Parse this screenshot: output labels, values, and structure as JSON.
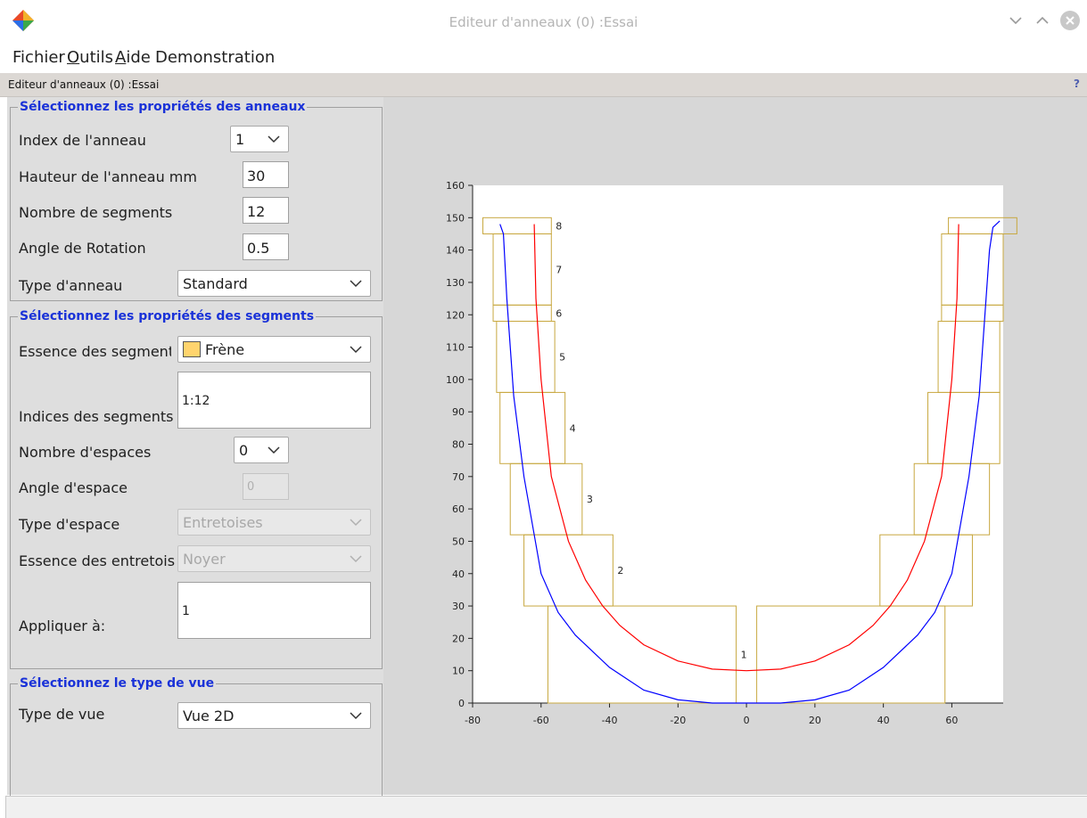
{
  "window": {
    "title": "Editeur d'anneaux (0) :Essai",
    "icons": [
      "app-logo-icon",
      "minimize-icon",
      "maximize-icon",
      "close-icon"
    ]
  },
  "menu": {
    "fichier": "Fichier",
    "outils_u": "O",
    "outils_rest": "utils",
    "aide_u": "A",
    "aide_rest": "ide",
    "demo": "Demonstration"
  },
  "panel": {
    "title": "Editeur d'anneaux (0) :Essai",
    "help": "?"
  },
  "rings": {
    "group_title": "Sélectionnez les propriétés des anneaux",
    "index_label": "Index de l'anneau",
    "index_value": "1",
    "height_label": "Hauteur de l'anneau mm",
    "height_value": "30",
    "segments_label": "Nombre de segments",
    "segments_value": "12",
    "rotation_label": "Angle de Rotation",
    "rotation_value": "0.5",
    "type_label": "Type d'anneau",
    "type_value": "Standard"
  },
  "segments": {
    "group_title": "Sélectionnez les propriétés des segments",
    "essence_label": "Essence des segments",
    "essence_value": "Frène",
    "essence_color": "#ffd46e",
    "indices_label": "Indices des segments",
    "indices_value": "1:12",
    "spaces_label": "Nombre d'espaces",
    "spaces_value": "0",
    "space_angle_label": "Angle d'espace",
    "space_angle_value": "0",
    "space_type_label": "Type d'espace",
    "space_type_value": "Entretoises",
    "spacer_essence_label": "Essence des entretoises",
    "spacer_essence_value": "Noyer",
    "apply_label": "Appliquer à:",
    "apply_value": "1"
  },
  "view": {
    "group_title": "Sélectionnez le type de vue",
    "type_label": "Type de vue",
    "type_value": "Vue 2D"
  },
  "chart_data": {
    "type": "line",
    "xlim": [
      -80,
      75
    ],
    "ylim": [
      0,
      160
    ],
    "x_ticks": [
      -80,
      -60,
      -40,
      -20,
      0,
      20,
      40,
      60
    ],
    "y_ticks": [
      0,
      10,
      20,
      30,
      40,
      50,
      60,
      70,
      80,
      90,
      100,
      110,
      120,
      130,
      140,
      150,
      160
    ],
    "series": [
      {
        "color": "#0000ff",
        "x": [
          -72,
          -71,
          -70,
          -68,
          -65,
          -60,
          -55,
          -50,
          -40,
          -30,
          -20,
          -10,
          0,
          10,
          20,
          30,
          40,
          50,
          55,
          60,
          65,
          68,
          70,
          71,
          72,
          74
        ],
        "y": [
          148,
          145,
          125,
          95,
          70,
          40,
          28,
          21,
          11,
          4,
          1,
          0,
          0,
          0,
          1,
          4,
          11,
          21,
          28,
          40,
          70,
          95,
          125,
          140,
          147,
          149
        ]
      },
      {
        "color": "#ff0000",
        "x": [
          -62,
          -61.5,
          -60,
          -57,
          -52,
          -47,
          -42,
          -37,
          -30,
          -20,
          -10,
          0,
          10,
          20,
          30,
          37,
          42,
          47,
          52,
          57,
          60,
          61.5,
          62
        ],
        "y": [
          148,
          125,
          100,
          70,
          50,
          38,
          30,
          24,
          18,
          13,
          10.5,
          10,
          10.5,
          13,
          18,
          24,
          30,
          38,
          50,
          70,
          100,
          125,
          148
        ]
      }
    ],
    "rings": [
      {
        "label": "1",
        "y": [
          0,
          30
        ],
        "left": [
          -58,
          -3
        ],
        "right": [
          3,
          58
        ]
      },
      {
        "label": "2",
        "y": [
          30,
          52
        ],
        "left": [
          -65,
          -39
        ],
        "right": [
          39,
          66
        ]
      },
      {
        "label": "3",
        "y": [
          52,
          74
        ],
        "left": [
          -69,
          -48
        ],
        "right": [
          49,
          71
        ]
      },
      {
        "label": "4",
        "y": [
          74,
          96
        ],
        "left": [
          -72,
          -53
        ],
        "right": [
          53,
          74
        ]
      },
      {
        "label": "5",
        "y": [
          96,
          118
        ],
        "left": [
          -73,
          -56
        ],
        "right": [
          56,
          74
        ]
      },
      {
        "label": "6",
        "y": [
          118,
          123
        ],
        "left": [
          -74,
          -57
        ],
        "right": [
          57,
          75
        ]
      },
      {
        "label": "7",
        "y": [
          123,
          145
        ],
        "left": [
          -74,
          -57
        ],
        "right": [
          57,
          75
        ]
      },
      {
        "label": "8",
        "y": [
          145,
          150
        ],
        "left": [
          -77,
          -57
        ],
        "right": [
          59,
          79
        ]
      }
    ],
    "ring_color": "#c8a840"
  }
}
